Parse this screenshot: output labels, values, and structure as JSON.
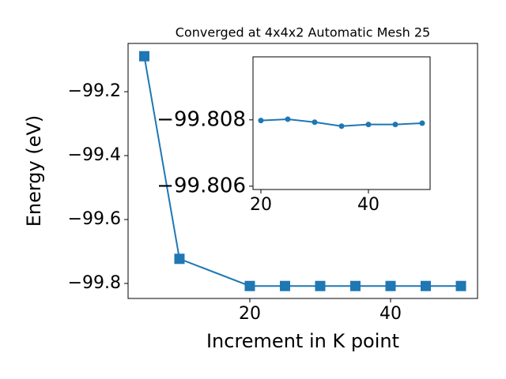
{
  "chart_data": [
    {
      "type": "line",
      "title": "Converged at 4x4x2 Automatic Mesh 25",
      "x_label": "Increment in K point",
      "y_label": "Energy (eV)",
      "x": [
        5,
        10,
        20,
        25,
        30,
        35,
        40,
        45,
        50
      ],
      "series": [
        {
          "color": "#1f77b4",
          "marker": "square",
          "values": [
            -99.089,
            -99.723,
            -99.808,
            -99.808,
            -99.808,
            -99.808,
            -99.808,
            -99.808,
            -99.808
          ]
        }
      ],
      "xlim": [
        2.7,
        52.36
      ],
      "ylim": [
        -99.847,
        -99.049
      ],
      "xticks": [
        20,
        40
      ],
      "yticks": [
        {
          "value": -99.2,
          "label": "−99.2"
        },
        {
          "value": -99.4,
          "label": "−99.4"
        },
        {
          "value": -99.6,
          "label": "−99.6"
        },
        {
          "value": -99.8,
          "label": "−99.8"
        }
      ]
    },
    {
      "type": "line",
      "x": [
        20,
        25,
        30,
        35,
        40,
        45,
        50
      ],
      "series": [
        {
          "color": "#1f77b4",
          "marker": "circle",
          "values": [
            -99.80798,
            -99.80802,
            -99.80793,
            -99.80781,
            -99.80786,
            -99.80786,
            -99.8079
          ]
        }
      ],
      "xlim": [
        18.53,
        51.47
      ],
      "ylim": [
        -99.8059,
        -99.8099
      ],
      "xticks": [
        20,
        40
      ],
      "yticks": [
        {
          "value": -99.808,
          "label": "−99.808"
        },
        {
          "value": -99.806,
          "label": "−99.806"
        }
      ]
    }
  ]
}
